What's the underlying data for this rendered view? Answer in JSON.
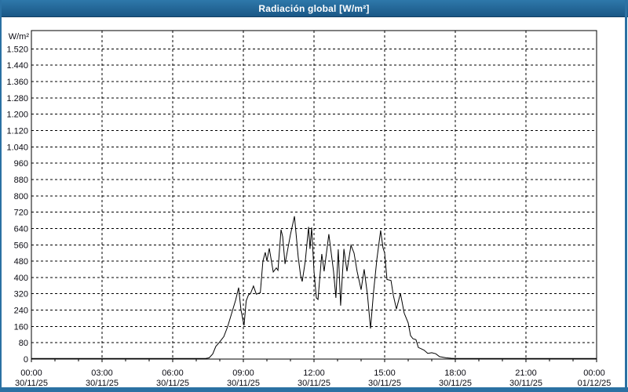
{
  "window": {
    "title": "Radiación global [W/m²]"
  },
  "colors": {
    "titlebar_top": "#2e78aa",
    "titlebar_bottom": "#1a5786",
    "titlebar_edge": "#123f63",
    "title_text": "#ffffff",
    "window_border": "#2b71a3",
    "label_text": "#0a0a12",
    "grid_line": "#000000",
    "series_line": "#000000",
    "plot_bg": "#ffffff"
  },
  "chart_data": {
    "type": "line",
    "title": "Radiación global [W/m²]",
    "ylabel_unit": "W/m²",
    "ylim": [
      0,
      1610
    ],
    "ytick_step": 80,
    "yticks": [
      0,
      80,
      160,
      240,
      320,
      400,
      480,
      560,
      640,
      720,
      800,
      880,
      960,
      1040,
      1120,
      1200,
      1280,
      1360,
      1440,
      1520
    ],
    "ytick_labels": [
      "0",
      "80",
      "160",
      "240",
      "320",
      "400",
      "480",
      "560",
      "640",
      "720",
      "800",
      "880",
      "960",
      "1.040",
      "1.120",
      "1.200",
      "1.280",
      "1.360",
      "1.440",
      "1.520"
    ],
    "xlim_hours": [
      0,
      24
    ],
    "xticks_major_hours": [
      0,
      3,
      6,
      9,
      12,
      15,
      18,
      21,
      24
    ],
    "xtick_time_labels": [
      "00:00",
      "03:00",
      "06:00",
      "09:00",
      "12:00",
      "15:00",
      "18:00",
      "21:00",
      "00:00"
    ],
    "xtick_date_labels": [
      "30/11/25",
      "30/11/25",
      "30/11/25",
      "30/11/25",
      "30/11/25",
      "30/11/25",
      "30/11/25",
      "30/11/25",
      "01/12/25"
    ],
    "xticks_minor_every_hours": 1,
    "grid": "dashed",
    "legend": "none",
    "series": [
      {
        "name": "Radiación global",
        "color": "#000000",
        "points": [
          [
            0,
            3
          ],
          [
            7.4,
            3
          ],
          [
            7.55,
            6
          ],
          [
            7.7,
            25
          ],
          [
            7.83,
            62
          ],
          [
            8.0,
            85
          ],
          [
            8.17,
            110
          ],
          [
            8.33,
            158
          ],
          [
            8.5,
            223
          ],
          [
            8.67,
            288
          ],
          [
            8.8,
            350
          ],
          [
            8.9,
            240
          ],
          [
            9.03,
            165
          ],
          [
            9.12,
            285
          ],
          [
            9.22,
            315
          ],
          [
            9.3,
            320
          ],
          [
            9.43,
            358
          ],
          [
            9.55,
            318
          ],
          [
            9.72,
            325
          ],
          [
            9.83,
            480
          ],
          [
            9.93,
            523
          ],
          [
            10.0,
            481
          ],
          [
            10.1,
            543
          ],
          [
            10.27,
            427
          ],
          [
            10.4,
            447
          ],
          [
            10.47,
            435
          ],
          [
            10.6,
            634
          ],
          [
            10.67,
            600
          ],
          [
            10.77,
            466
          ],
          [
            11.0,
            610
          ],
          [
            11.17,
            700
          ],
          [
            11.33,
            500
          ],
          [
            11.43,
            410
          ],
          [
            11.5,
            380
          ],
          [
            11.63,
            480
          ],
          [
            11.77,
            648
          ],
          [
            11.83,
            540
          ],
          [
            11.9,
            645
          ],
          [
            12.0,
            430
          ],
          [
            12.1,
            300
          ],
          [
            12.17,
            292
          ],
          [
            12.33,
            515
          ],
          [
            12.43,
            430
          ],
          [
            12.63,
            612
          ],
          [
            12.83,
            430
          ],
          [
            12.93,
            300
          ],
          [
            13.03,
            538
          ],
          [
            13.13,
            262
          ],
          [
            13.27,
            540
          ],
          [
            13.4,
            430
          ],
          [
            13.57,
            558
          ],
          [
            13.7,
            520
          ],
          [
            13.83,
            430
          ],
          [
            14.0,
            340
          ],
          [
            14.13,
            440
          ],
          [
            14.27,
            315
          ],
          [
            14.4,
            150
          ],
          [
            14.53,
            330
          ],
          [
            14.67,
            490
          ],
          [
            14.83,
            630
          ],
          [
            14.93,
            545
          ],
          [
            15.0,
            520
          ],
          [
            15.1,
            390
          ],
          [
            15.27,
            385
          ],
          [
            15.37,
            312
          ],
          [
            15.5,
            245
          ],
          [
            15.67,
            322
          ],
          [
            15.83,
            225
          ],
          [
            16.0,
            177
          ],
          [
            16.1,
            115
          ],
          [
            16.2,
            100
          ],
          [
            16.33,
            95
          ],
          [
            16.43,
            57
          ],
          [
            16.67,
            44
          ],
          [
            16.83,
            28
          ],
          [
            17.0,
            31
          ],
          [
            17.17,
            26
          ],
          [
            17.33,
            12
          ],
          [
            17.6,
            6
          ],
          [
            17.83,
            4
          ],
          [
            18.0,
            3
          ],
          [
            24,
            3
          ]
        ]
      }
    ]
  }
}
